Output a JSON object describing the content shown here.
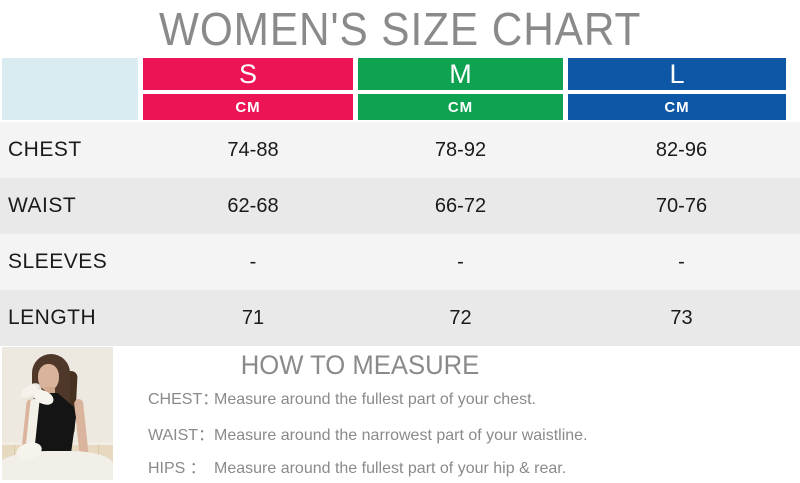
{
  "page_title": "WOMEN'S SIZE CHART",
  "size_chart": {
    "columns": [
      {
        "size": "S",
        "unit": "CM",
        "color": "#ED1456"
      },
      {
        "size": "M",
        "unit": "CM",
        "color": "#0FA351"
      },
      {
        "size": "L",
        "unit": "CM",
        "color": "#0E57A7"
      }
    ],
    "rows": [
      {
        "label": "CHEST",
        "values": [
          "74-88",
          "78-92",
          "82-96"
        ]
      },
      {
        "label": "WAIST",
        "values": [
          "62-68",
          "66-72",
          "70-76"
        ]
      },
      {
        "label": "SLEEVES",
        "values": [
          "-",
          "-",
          "-"
        ]
      },
      {
        "label": "LENGTH",
        "values": [
          "71",
          "72",
          "73"
        ]
      }
    ]
  },
  "how_to_measure": {
    "title": "HOW TO MEASURE",
    "items": [
      {
        "term": "CHEST：",
        "desc": "Measure around the fullest part of your chest."
      },
      {
        "term": "WAIST：",
        "desc": "Measure around the narrowest part of your waistline."
      },
      {
        "term": "HIPS ：",
        "desc": "Measure around the fullest part of your hip & rear."
      }
    ]
  },
  "colors": {
    "size_s": "#ED1456",
    "size_m": "#0FA351",
    "size_l": "#0E57A7",
    "corner_cell": "#DAECF2",
    "row_light": "#F4F4F4",
    "row_dark": "#E9E9E9",
    "heading_gray": "#8A8A8A",
    "text_dark": "#1A1A1A"
  }
}
